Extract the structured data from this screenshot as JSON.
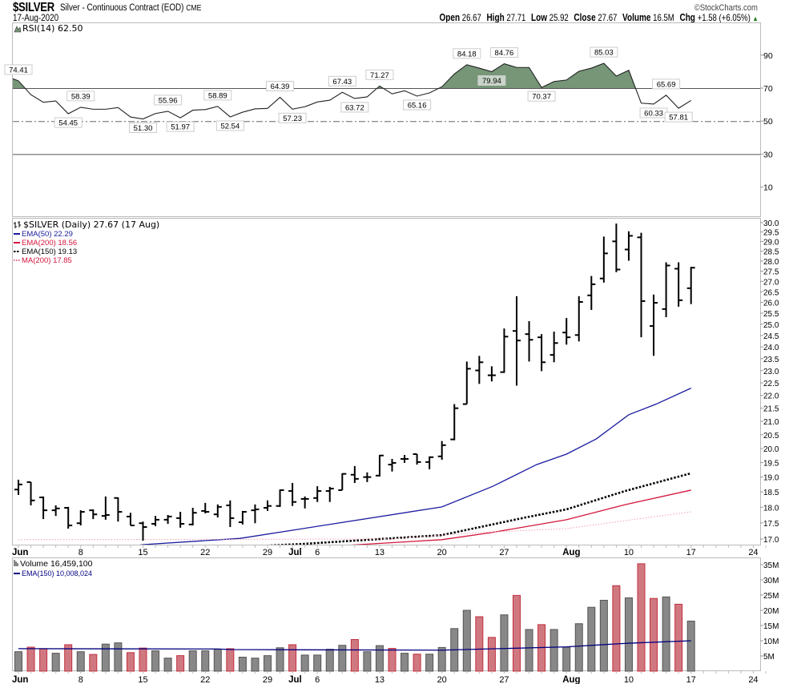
{
  "header": {
    "symbol": "$SILVER",
    "description": "Silver - Continuous Contract (EOD)",
    "exchange": "CME",
    "copyright": "©StockCharts.com",
    "date": "17-Aug-2020",
    "quote": {
      "open_label": "Open",
      "open": "26.67",
      "high_label": "High",
      "high": "27.71",
      "low_label": "Low",
      "low": "25.92",
      "close_label": "Close",
      "close": "27.67",
      "volume_label": "Volume",
      "volume": "16.5M",
      "chg_label": "Chg",
      "chg": "+1.58 (+6.05%)",
      "chg_arrow": "▲"
    }
  },
  "colors": {
    "ema50": "#1a1aa0",
    "ema200": "#d4143c",
    "ema150": "#000000",
    "ma200": "#e06080",
    "rsi_fill": "#769677",
    "vol_up_fill": "#888888",
    "vol_up_stroke": "#555555",
    "vol_down_fill": "#d07880",
    "vol_down_stroke": "#c03040",
    "vol_ema": "#000080"
  },
  "chart_data": [
    {
      "type": "line",
      "title": "RSI(14) 62.50",
      "indicator": "RSI(14)",
      "last_value": 62.5,
      "ylim": [
        0,
        100
      ],
      "y_ticks": [
        "90",
        "70",
        "50",
        "30",
        "10"
      ],
      "y_tick_values": [
        90,
        70,
        50,
        30,
        10
      ],
      "reference_lines": {
        "solid": [
          70,
          30
        ],
        "dash_dot": [
          50
        ]
      },
      "shade_above": 70,
      "values": [
        74.41,
        66.0,
        61.4,
        62.2,
        54.45,
        58.39,
        57.2,
        57.2,
        58.2,
        52.5,
        51.3,
        54.6,
        55.96,
        51.97,
        56.6,
        57.0,
        58.89,
        52.54,
        55.4,
        57.4,
        57.7,
        64.39,
        57.23,
        58.7,
        61.6,
        62.7,
        67.43,
        63.72,
        64.7,
        71.27,
        66.5,
        68.4,
        65.16,
        67.1,
        70.8,
        78.6,
        84.18,
        82.1,
        79.94,
        84.76,
        82.5,
        82.5,
        70.37,
        74.0,
        74.9,
        80.2,
        82.1,
        85.03,
        77.3,
        80.8,
        60.9,
        60.33,
        65.69,
        57.81,
        62.5
      ],
      "annotations": [
        {
          "day": 0,
          "text": "74.41",
          "pos": "above"
        },
        {
          "day": 4,
          "text": "54.45",
          "pos": "below"
        },
        {
          "day": 5,
          "text": "58.39",
          "pos": "above"
        },
        {
          "day": 10,
          "text": "51.30",
          "pos": "below"
        },
        {
          "day": 12,
          "text": "55.96",
          "pos": "above"
        },
        {
          "day": 13,
          "text": "51.97",
          "pos": "below"
        },
        {
          "day": 16,
          "text": "58.89",
          "pos": "above"
        },
        {
          "day": 17,
          "text": "52.54",
          "pos": "below"
        },
        {
          "day": 21,
          "text": "64.39",
          "pos": "above"
        },
        {
          "day": 22,
          "text": "57.23",
          "pos": "below"
        },
        {
          "day": 26,
          "text": "67.43",
          "pos": "above"
        },
        {
          "day": 27,
          "text": "63.72",
          "pos": "below"
        },
        {
          "day": 29,
          "text": "71.27",
          "pos": "above"
        },
        {
          "day": 32,
          "text": "65.16",
          "pos": "below"
        },
        {
          "day": 36,
          "text": "84.18",
          "pos": "above"
        },
        {
          "day": 38,
          "text": "79.94",
          "pos": "below-shaded"
        },
        {
          "day": 39,
          "text": "84.76",
          "pos": "above"
        },
        {
          "day": 42,
          "text": "70.37",
          "pos": "below"
        },
        {
          "day": 47,
          "text": "85.03",
          "pos": "above"
        },
        {
          "day": 51,
          "text": "60.33",
          "pos": "below"
        },
        {
          "day": 52,
          "text": "65.69",
          "pos": "above"
        },
        {
          "day": 53,
          "text": "57.81",
          "pos": "below"
        }
      ]
    },
    {
      "type": "ohlc",
      "title": "$SILVER (Daily) 27.67 (17 Aug)",
      "scale": "log",
      "ylim": [
        17.0,
        30.0
      ],
      "y_ticks": [
        "30.0",
        "29.5",
        "29.0",
        "28.5",
        "28.0",
        "27.5",
        "27.0",
        "26.5",
        "26.0",
        "25.5",
        "25.0",
        "24.5",
        "24.0",
        "23.5",
        "23.0",
        "22.5",
        "22.0",
        "21.5",
        "21.0",
        "20.5",
        "20.0",
        "19.5",
        "19.0",
        "18.5",
        "18.0",
        "17.5",
        "17.0"
      ],
      "y_tick_values": [
        30.0,
        29.5,
        29.0,
        28.5,
        28.0,
        27.5,
        27.0,
        26.5,
        26.0,
        25.5,
        25.0,
        24.5,
        24.0,
        23.5,
        23.0,
        22.5,
        22.0,
        21.5,
        21.0,
        20.5,
        20.0,
        19.5,
        19.0,
        18.5,
        18.0,
        17.5,
        17.0
      ],
      "ohlc": [
        [
          18.58,
          18.91,
          18.4,
          18.75
        ],
        [
          18.83,
          18.83,
          18.06,
          18.22
        ],
        [
          18.32,
          18.35,
          17.62,
          17.9
        ],
        [
          17.9,
          18.06,
          17.72,
          17.96
        ],
        [
          17.98,
          18.01,
          17.32,
          17.42
        ],
        [
          17.49,
          17.9,
          17.42,
          17.85
        ],
        [
          17.9,
          17.93,
          17.62,
          17.77
        ],
        [
          17.72,
          18.35,
          17.6,
          17.75
        ],
        [
          18.3,
          18.32,
          17.54,
          17.85
        ],
        [
          17.7,
          17.82,
          17.42,
          17.42
        ],
        [
          17.49,
          17.54,
          16.95,
          17.37
        ],
        [
          17.47,
          17.72,
          17.4,
          17.6
        ],
        [
          17.6,
          17.75,
          17.47,
          17.7
        ],
        [
          17.65,
          17.85,
          17.35,
          17.47
        ],
        [
          17.45,
          17.98,
          17.42,
          17.82
        ],
        [
          17.88,
          18.14,
          17.8,
          17.85
        ],
        [
          17.77,
          18.09,
          17.67,
          18.01
        ],
        [
          18.06,
          18.22,
          17.37,
          17.65
        ],
        [
          17.52,
          17.88,
          17.45,
          17.85
        ],
        [
          17.9,
          18.09,
          17.49,
          17.93
        ],
        [
          17.98,
          18.22,
          17.88,
          18.04
        ],
        [
          18.04,
          18.58,
          18.01,
          18.56
        ],
        [
          18.53,
          18.8,
          18.04,
          18.17
        ],
        [
          18.27,
          18.35,
          17.96,
          18.27
        ],
        [
          18.3,
          18.69,
          18.17,
          18.53
        ],
        [
          18.53,
          18.67,
          18.17,
          18.61
        ],
        [
          18.56,
          19.13,
          18.56,
          19.11
        ],
        [
          19.08,
          19.38,
          18.8,
          18.94
        ],
        [
          19.0,
          19.16,
          18.83,
          19.0
        ],
        [
          19.05,
          19.77,
          19.02,
          19.75
        ],
        [
          19.43,
          19.63,
          19.19,
          19.49
        ],
        [
          19.63,
          19.77,
          19.49,
          19.63
        ],
        [
          19.8,
          19.8,
          19.43,
          19.52
        ],
        [
          19.52,
          19.72,
          19.27,
          19.69
        ],
        [
          19.72,
          20.27,
          19.6,
          20.12
        ],
        [
          20.33,
          21.66,
          20.3,
          21.5
        ],
        [
          21.66,
          23.38,
          21.66,
          23.08
        ],
        [
          23.01,
          23.62,
          22.46,
          23.35
        ],
        [
          22.81,
          23.18,
          22.56,
          22.81
        ],
        [
          22.94,
          24.81,
          22.91,
          24.45
        ],
        [
          24.7,
          26.29,
          22.39,
          24.28
        ],
        [
          24.56,
          25.14,
          23.38,
          24.31
        ],
        [
          24.42,
          24.56,
          22.98,
          23.35
        ],
        [
          23.66,
          24.67,
          23.35,
          24.17
        ],
        [
          24.63,
          25.28,
          24.1,
          24.42
        ],
        [
          24.52,
          26.29,
          24.24,
          26.02
        ],
        [
          26.33,
          27.26,
          25.65,
          26.86
        ],
        [
          27.14,
          29.26,
          26.94,
          28.39
        ],
        [
          29.01,
          29.95,
          27.45,
          27.58
        ],
        [
          28.59,
          29.54,
          28.02,
          29.3
        ],
        [
          29.22,
          29.46,
          24.42,
          26.06
        ],
        [
          24.92,
          26.37,
          23.62,
          25.98
        ],
        [
          25.69,
          27.94,
          25.32,
          27.78
        ],
        [
          27.62,
          27.94,
          25.8,
          26.1
        ],
        [
          26.67,
          27.71,
          25.92,
          27.67
        ]
      ],
      "overlays": [
        {
          "name": "EMA(50) 22.29",
          "key": "ema50",
          "style": "solid",
          "points": [
            [
              0,
              16.3
            ],
            [
              10,
              16.83
            ],
            [
              17.8,
              17.02
            ],
            [
              34,
              18.01
            ],
            [
              38.1,
              18.69
            ],
            [
              41.6,
              19.43
            ],
            [
              44,
              19.8
            ],
            [
              46.4,
              20.35
            ],
            [
              49,
              21.25
            ],
            [
              51.2,
              21.66
            ],
            [
              54,
              22.29
            ]
          ]
        },
        {
          "name": "EMA(200) 18.56",
          "key": "ema200",
          "style": "solid",
          "points": [
            [
              0,
              16.2
            ],
            [
              27.3,
              16.83
            ],
            [
              34,
              16.98
            ],
            [
              38,
              17.2
            ],
            [
              44,
              17.6
            ],
            [
              48.7,
              18.08
            ],
            [
              54,
              18.56
            ]
          ]
        },
        {
          "name": "EMA(150) 19.13",
          "key": "ema150",
          "style": "dotted-bold",
          "points": [
            [
              0,
              16.45
            ],
            [
              22.8,
              16.85
            ],
            [
              34,
              17.12
            ],
            [
              40.7,
              17.67
            ],
            [
              44,
              17.93
            ],
            [
              48.7,
              18.53
            ],
            [
              54,
              19.13
            ]
          ]
        },
        {
          "name": "MA(200) 17.85",
          "key": "ma200",
          "style": "dotted",
          "points": [
            [
              0,
              16.98
            ],
            [
              30,
              17.0
            ],
            [
              37,
              17.2
            ],
            [
              44,
              17.32
            ],
            [
              48.7,
              17.57
            ],
            [
              54,
              17.85
            ]
          ]
        }
      ]
    },
    {
      "type": "bar",
      "title": "Volume 16,459,100",
      "ema_legend": "EMA(150) 10,008,024",
      "units": "millions",
      "ylim": [
        0,
        37
      ],
      "y_ticks": [
        "35M",
        "30M",
        "25M",
        "20M",
        "15M",
        "10M",
        "5M"
      ],
      "y_tick_values": [
        35,
        30,
        25,
        20,
        15,
        10,
        5
      ],
      "values": [
        6.4,
        7.9,
        7.4,
        5.9,
        8.7,
        6.4,
        5.5,
        8.9,
        9.3,
        6.1,
        7.6,
        6.7,
        4.3,
        5.1,
        6.7,
        6.7,
        7.2,
        7.4,
        4.6,
        4.3,
        5.1,
        7.7,
        8.7,
        5.3,
        5.3,
        7.2,
        8.5,
        10.4,
        6.4,
        8.4,
        7.5,
        5.9,
        5.6,
        5.6,
        7.8,
        14.0,
        20.0,
        17.9,
        11.1,
        18.5,
        24.9,
        13.7,
        15.3,
        13.7,
        7.9,
        15.6,
        21.0,
        23.3,
        28.1,
        24.1,
        35.3,
        23.9,
        24.4,
        22.0,
        16.46
      ],
      "down": [
        0,
        1,
        1,
        0,
        1,
        0,
        1,
        0,
        0,
        1,
        1,
        0,
        0,
        1,
        0,
        0,
        0,
        1,
        0,
        0,
        0,
        0,
        1,
        0,
        0,
        0,
        0,
        1,
        0,
        0,
        1,
        0,
        1,
        0,
        0,
        0,
        0,
        1,
        1,
        0,
        1,
        0,
        1,
        0,
        0,
        0,
        0,
        0,
        1,
        0,
        1,
        1,
        0,
        1,
        0
      ],
      "ema_points": [
        [
          0,
          7.4
        ],
        [
          16,
          7.3
        ],
        [
          17,
          7.1
        ],
        [
          34,
          6.9
        ],
        [
          44,
          8.0
        ],
        [
          49,
          9.2
        ],
        [
          54,
          10.0
        ]
      ]
    }
  ],
  "x_axis": {
    "labels": [
      {
        "day": 0,
        "text": "Jun",
        "bold": true
      },
      {
        "day": 5,
        "text": "8"
      },
      {
        "day": 10,
        "text": "15"
      },
      {
        "day": 15,
        "text": "22"
      },
      {
        "day": 20,
        "text": "29"
      },
      {
        "day": 22,
        "text": "Jul",
        "bold": true
      },
      {
        "day": 24,
        "text": "6"
      },
      {
        "day": 29,
        "text": "13"
      },
      {
        "day": 34,
        "text": "20"
      },
      {
        "day": 39,
        "text": "27"
      },
      {
        "day": 44,
        "text": "Aug",
        "bold": true
      },
      {
        "day": 49,
        "text": "10"
      },
      {
        "day": 54,
        "text": "17"
      },
      {
        "day": 59,
        "text": "24"
      }
    ]
  }
}
